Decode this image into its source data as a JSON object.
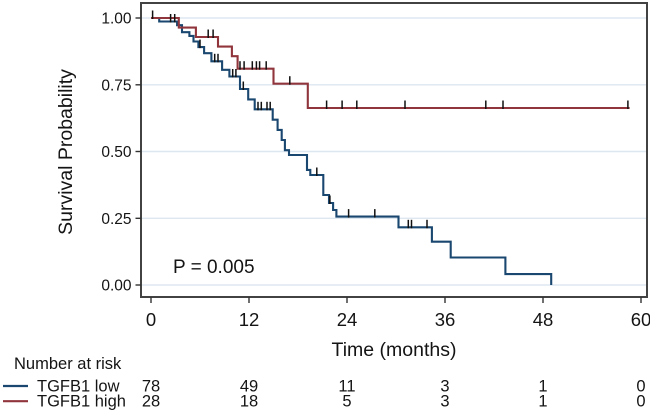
{
  "chart_data": {
    "type": "line",
    "subtype": "kaplan-meier-step",
    "title": "",
    "xlabel": "Time (months)",
    "ylabel": "Survival Probability",
    "xlim": [
      0,
      60
    ],
    "ylim": [
      0.0,
      1.0
    ],
    "x_ticks": [
      0,
      12,
      24,
      36,
      48,
      60
    ],
    "y_ticks": [
      0.0,
      0.25,
      0.5,
      0.75,
      1.0
    ],
    "y_tick_labels": [
      "0.00",
      "0.25",
      "0.50",
      "0.75",
      "1.00"
    ],
    "grid": "horizontal",
    "legend_position": "risk-table-left-bottom",
    "annotation": "P = 0.005",
    "series": [
      {
        "name": "TGFB1 low",
        "color": "#1a476f",
        "n_start": 78,
        "steps": [
          [
            0,
            1.0
          ],
          [
            1.0,
            0.987
          ],
          [
            3.2,
            0.973
          ],
          [
            3.8,
            0.947
          ],
          [
            4.7,
            0.933
          ],
          [
            5.2,
            0.912
          ],
          [
            5.8,
            0.891
          ],
          [
            6.5,
            0.868
          ],
          [
            7.4,
            0.838
          ],
          [
            8.7,
            0.806
          ],
          [
            9.6,
            0.781
          ],
          [
            10.9,
            0.734
          ],
          [
            11.9,
            0.695
          ],
          [
            12.7,
            0.658
          ],
          [
            14.9,
            0.619
          ],
          [
            15.5,
            0.581
          ],
          [
            16.0,
            0.543
          ],
          [
            16.4,
            0.505
          ],
          [
            16.9,
            0.487
          ],
          [
            19.1,
            0.431
          ],
          [
            19.5,
            0.412
          ],
          [
            21.1,
            0.337
          ],
          [
            21.8,
            0.307
          ],
          [
            22.3,
            0.281
          ],
          [
            22.7,
            0.256
          ],
          [
            30.3,
            0.216
          ],
          [
            34.4,
            0.162
          ],
          [
            36.7,
            0.103
          ],
          [
            43.4,
            0.041
          ],
          [
            49.0,
            0.0
          ]
        ],
        "end_time": 49.0,
        "censor_marks": [
          [
            2.4,
            0.987
          ],
          [
            2.9,
            0.987
          ],
          [
            6.0,
            0.891
          ],
          [
            7.8,
            0.838
          ],
          [
            8.2,
            0.838
          ],
          [
            10.0,
            0.781
          ],
          [
            10.4,
            0.781
          ],
          [
            11.3,
            0.734
          ],
          [
            13.1,
            0.658
          ],
          [
            13.5,
            0.658
          ],
          [
            14.2,
            0.658
          ],
          [
            14.6,
            0.658
          ],
          [
            20.3,
            0.412
          ],
          [
            21.9,
            0.307
          ],
          [
            24.2,
            0.256
          ],
          [
            27.4,
            0.256
          ],
          [
            31.5,
            0.216
          ],
          [
            31.9,
            0.216
          ],
          [
            33.8,
            0.216
          ]
        ]
      },
      {
        "name": "TGFB1 high",
        "color": "#90353b",
        "n_start": 28,
        "steps": [
          [
            0,
            1.0
          ],
          [
            3.4,
            0.964
          ],
          [
            5.5,
            0.929
          ],
          [
            8.2,
            0.893
          ],
          [
            9.9,
            0.857
          ],
          [
            10.6,
            0.81
          ],
          [
            15.0,
            0.754
          ],
          [
            19.2,
            0.663
          ]
        ],
        "end_time": 58.6,
        "censor_marks": [
          [
            0.2,
            1.0
          ],
          [
            7.0,
            0.929
          ],
          [
            7.6,
            0.929
          ],
          [
            10.9,
            0.81
          ],
          [
            11.4,
            0.81
          ],
          [
            12.4,
            0.81
          ],
          [
            12.9,
            0.81
          ],
          [
            13.3,
            0.81
          ],
          [
            14.1,
            0.81
          ],
          [
            17.0,
            0.754
          ],
          [
            21.5,
            0.663
          ],
          [
            23.4,
            0.663
          ],
          [
            25.2,
            0.663
          ],
          [
            31.1,
            0.663
          ],
          [
            41.0,
            0.663
          ],
          [
            43.1,
            0.663
          ],
          [
            58.4,
            0.663
          ]
        ]
      }
    ],
    "risk_table": {
      "title": "Number at risk",
      "times": [
        0,
        12,
        24,
        36,
        48,
        60
      ],
      "rows": [
        {
          "label": "TGFB1 low",
          "color": "#1a476f",
          "counts": [
            78,
            49,
            11,
            3,
            1,
            0
          ]
        },
        {
          "label": "TGFB1 high",
          "color": "#90353b",
          "counts": [
            28,
            18,
            5,
            3,
            1,
            0
          ]
        }
      ]
    }
  },
  "colors": {
    "grid": "#dde7f0",
    "axis": "#424242",
    "tick": "#333333",
    "text": "#141414",
    "censor": "#111111",
    "plot_bg": "#ffffff"
  }
}
